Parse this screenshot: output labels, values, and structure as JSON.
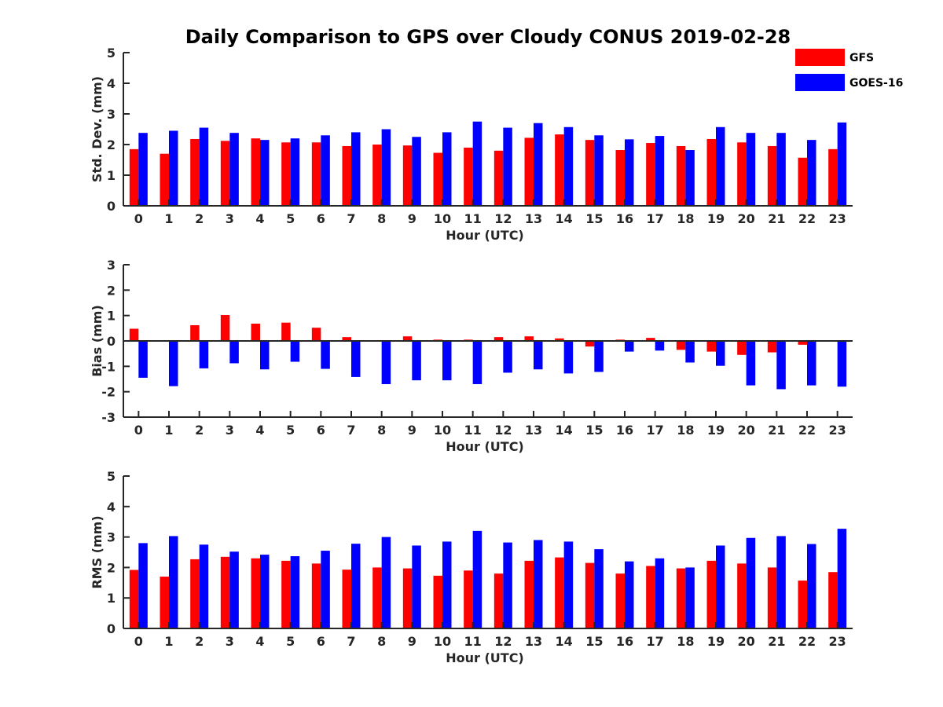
{
  "figure_title": "Daily Comparison to GPS over Cloudy CONUS 2019-02-28",
  "legend": {
    "placement": "top-right",
    "entries": [
      {
        "label": "GFS",
        "color": "#ff0000"
      },
      {
        "label": "GOES-16",
        "color": "#0000ff"
      }
    ]
  },
  "chart_data": [
    {
      "type": "bar",
      "xlabel": "Hour (UTC)",
      "ylabel": "Std. Dev. (mm)",
      "ylim": [
        0,
        5
      ],
      "yticks": [
        0,
        1,
        2,
        3,
        4,
        5
      ],
      "grid": false,
      "categories": [
        "0",
        "1",
        "2",
        "3",
        "4",
        "5",
        "6",
        "7",
        "8",
        "9",
        "10",
        "11",
        "12",
        "13",
        "14",
        "15",
        "16",
        "17",
        "18",
        "19",
        "20",
        "21",
        "22",
        "23"
      ],
      "series": [
        {
          "name": "GFS",
          "color": "#ff0000",
          "values": [
            1.85,
            1.7,
            2.18,
            2.12,
            2.2,
            2.07,
            2.07,
            1.95,
            2.0,
            1.97,
            1.73,
            1.9,
            1.8,
            2.22,
            2.33,
            2.15,
            1.82,
            2.05,
            1.95,
            2.18,
            2.07,
            1.95,
            1.57,
            1.85
          ]
        },
        {
          "name": "GOES-16",
          "color": "#0000ff",
          "values": [
            2.38,
            2.45,
            2.55,
            2.38,
            2.15,
            2.2,
            2.3,
            2.4,
            2.5,
            2.25,
            2.4,
            2.75,
            2.55,
            2.7,
            2.57,
            2.3,
            2.17,
            2.28,
            1.82,
            2.57,
            2.38,
            2.38,
            2.15,
            2.72
          ]
        }
      ]
    },
    {
      "type": "bar",
      "xlabel": "Hour (UTC)",
      "ylabel": "Bias (mm)",
      "ylim": [
        -3,
        3
      ],
      "yticks": [
        -3,
        -2,
        -1,
        0,
        1,
        2,
        3
      ],
      "grid": false,
      "zero_line": true,
      "categories": [
        "0",
        "1",
        "2",
        "3",
        "4",
        "5",
        "6",
        "7",
        "8",
        "9",
        "10",
        "11",
        "12",
        "13",
        "14",
        "15",
        "16",
        "17",
        "18",
        "19",
        "20",
        "21",
        "22",
        "23"
      ],
      "series": [
        {
          "name": "GFS",
          "color": "#ff0000",
          "values": [
            0.48,
            -0.02,
            0.62,
            1.02,
            0.68,
            0.72,
            0.52,
            0.15,
            0.02,
            0.18,
            0.05,
            0.05,
            0.15,
            0.18,
            0.1,
            -0.22,
            0.05,
            0.12,
            -0.35,
            -0.42,
            -0.55,
            -0.45,
            -0.15,
            -0.02
          ]
        },
        {
          "name": "GOES-16",
          "color": "#0000ff",
          "values": [
            -1.45,
            -1.78,
            -1.08,
            -0.88,
            -1.12,
            -0.82,
            -1.1,
            -1.42,
            -1.7,
            -1.55,
            -1.55,
            -1.7,
            -1.25,
            -1.12,
            -1.28,
            -1.22,
            -0.42,
            -0.38,
            -0.85,
            -0.98,
            -1.75,
            -1.9,
            -1.75,
            -1.8
          ]
        }
      ]
    },
    {
      "type": "bar",
      "xlabel": "Hour (UTC)",
      "ylabel": "RMS (mm)",
      "ylim": [
        0,
        5
      ],
      "yticks": [
        0,
        1,
        2,
        3,
        4,
        5
      ],
      "grid": false,
      "categories": [
        "0",
        "1",
        "2",
        "3",
        "4",
        "5",
        "6",
        "7",
        "8",
        "9",
        "10",
        "11",
        "12",
        "13",
        "14",
        "15",
        "16",
        "17",
        "18",
        "19",
        "20",
        "21",
        "22",
        "23"
      ],
      "series": [
        {
          "name": "GFS",
          "color": "#ff0000",
          "values": [
            1.92,
            1.7,
            2.27,
            2.35,
            2.3,
            2.22,
            2.13,
            1.93,
            2.0,
            1.97,
            1.73,
            1.9,
            1.8,
            2.22,
            2.33,
            2.15,
            1.8,
            2.05,
            1.97,
            2.22,
            2.13,
            2.0,
            1.57,
            1.85
          ]
        },
        {
          "name": "GOES-16",
          "color": "#0000ff",
          "values": [
            2.8,
            3.03,
            2.75,
            2.52,
            2.42,
            2.37,
            2.55,
            2.78,
            3.0,
            2.72,
            2.85,
            3.2,
            2.82,
            2.9,
            2.85,
            2.6,
            2.2,
            2.3,
            2.0,
            2.72,
            2.97,
            3.03,
            2.77,
            3.27
          ]
        }
      ]
    }
  ]
}
